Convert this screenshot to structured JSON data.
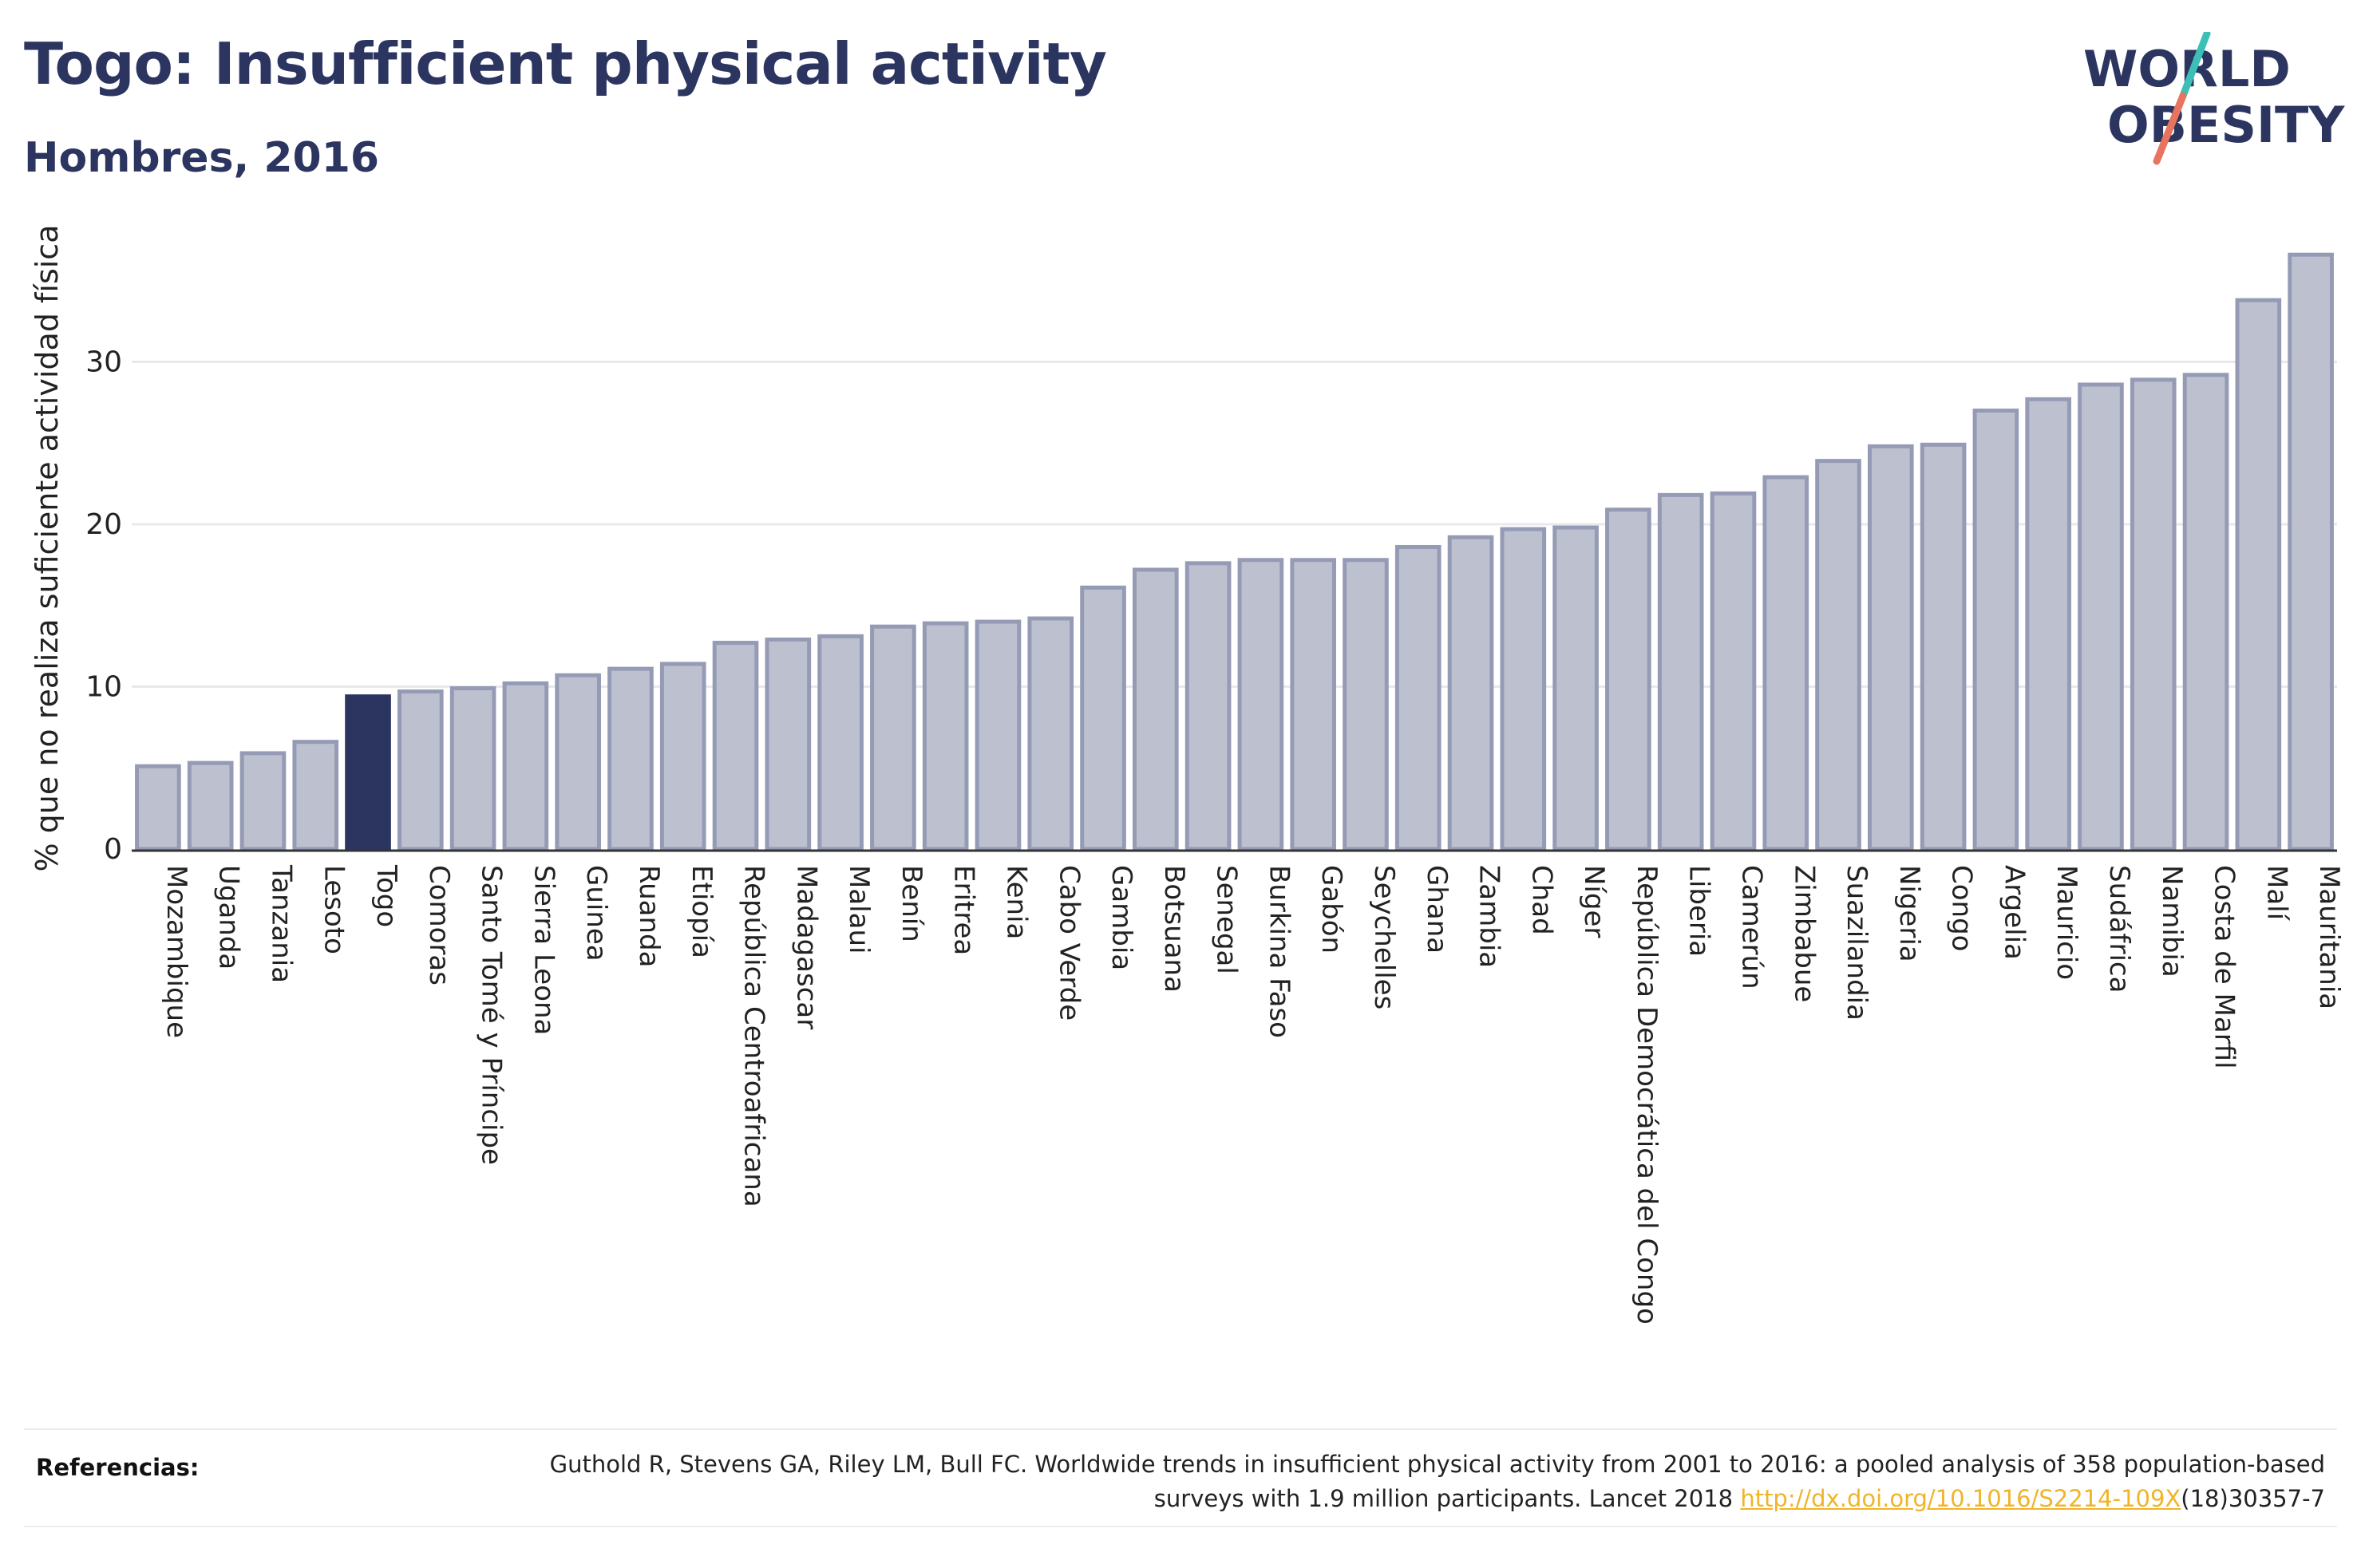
{
  "header": {
    "title": "Togo: Insufficient physical activity",
    "subtitle": "Hombres, 2016"
  },
  "logo": {
    "line1": "WORLD",
    "line2": "OBESITY",
    "colors": {
      "text": "#2b3560",
      "slash_teal": "#3dbfb8",
      "slash_coral": "#e8735f"
    }
  },
  "references": {
    "label": "Referencias:",
    "text_before_link": "Guthold R, Stevens GA, Riley LM, Bull FC. Worldwide trends in insufficient physical activity from 2001 to 2016: a pooled analysis of 358 population-based surveys with 1.9 million participants. Lancet 2018 ",
    "link_text": "http://dx.doi.org/10.1016/S2214-109X",
    "text_after_link": "(18)30357-7"
  },
  "colors": {
    "bar_fill": "#bdc1cf",
    "bar_stroke": "#959bb5",
    "highlight_fill": "#2b3560",
    "gridline": "#e8e8ee",
    "text": "#2b3560"
  },
  "chart_data": {
    "type": "bar",
    "ylabel": "% que no realiza suficiente actividad física",
    "xlabel": "",
    "ylim": [
      0,
      40
    ],
    "yticks": [
      0,
      10,
      20,
      30
    ],
    "grid": true,
    "highlight": "Togo",
    "categories": [
      "Mozambique",
      "Uganda",
      "Tanzania",
      "Lesoto",
      "Togo",
      "Comoras",
      "Santo Tomé y Príncipe",
      "Sierra Leona",
      "Guinea",
      "Ruanda",
      "Etiopía",
      "República Centroafricana",
      "Madagascar",
      "Malaui",
      "Benín",
      "Eritrea",
      "Kenia",
      "Cabo Verde",
      "Gambia",
      "Botsuana",
      "Senegal",
      "Burkina Faso",
      "Gabón",
      "Seychelles",
      "Ghana",
      "Zambia",
      "Chad",
      "Níger",
      "República Democrática del Congo",
      "Liberia",
      "Camerún",
      "Zimbabue",
      "Suazilandia",
      "Nigeria",
      "Congo",
      "Argelia",
      "Mauricio",
      "Sudáfrica",
      "Namibia",
      "Costa de Marfil",
      "Malí",
      "Mauritania"
    ],
    "values": [
      5.1,
      5.3,
      5.9,
      6.6,
      9.4,
      9.7,
      9.9,
      10.2,
      10.7,
      11.1,
      11.4,
      12.7,
      12.9,
      13.1,
      13.7,
      13.9,
      14.0,
      14.2,
      16.1,
      17.2,
      17.6,
      17.8,
      17.8,
      17.8,
      18.6,
      19.2,
      19.7,
      19.8,
      20.9,
      21.8,
      21.9,
      22.9,
      23.9,
      24.8,
      24.9,
      27.0,
      27.7,
      28.6,
      28.9,
      29.2,
      33.8,
      36.6
    ]
  }
}
